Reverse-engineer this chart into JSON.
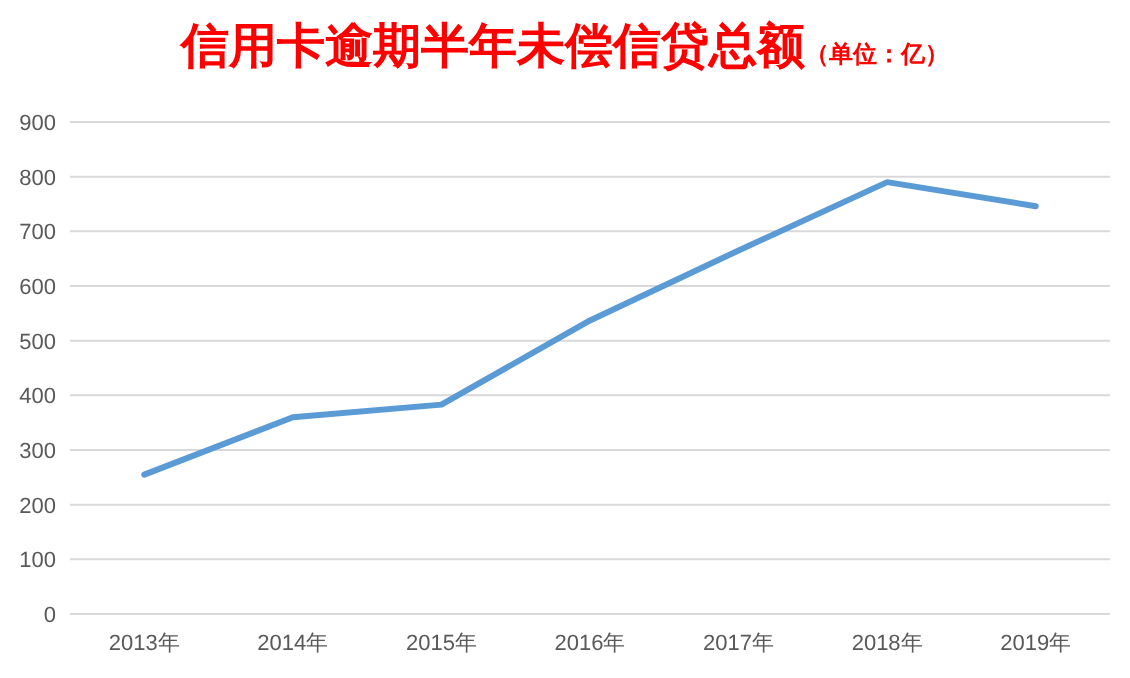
{
  "chart_data": {
    "type": "line",
    "title": "信用卡逾期半年未偿信贷总额",
    "subtitle": "（单位：亿）",
    "categories": [
      "2013年",
      "2014年",
      "2015年",
      "2016年",
      "2017年",
      "2018年",
      "2019年"
    ],
    "series": [
      {
        "color": "#5b9bd5",
        "values": [
          255,
          360,
          383,
          537,
          665,
          790,
          746
        ]
      }
    ],
    "ylim": [
      0,
      900
    ],
    "yticks": [
      0,
      100,
      200,
      300,
      400,
      500,
      600,
      700,
      800,
      900
    ],
    "grid": "y",
    "marker": "none",
    "line_style": "solid"
  }
}
